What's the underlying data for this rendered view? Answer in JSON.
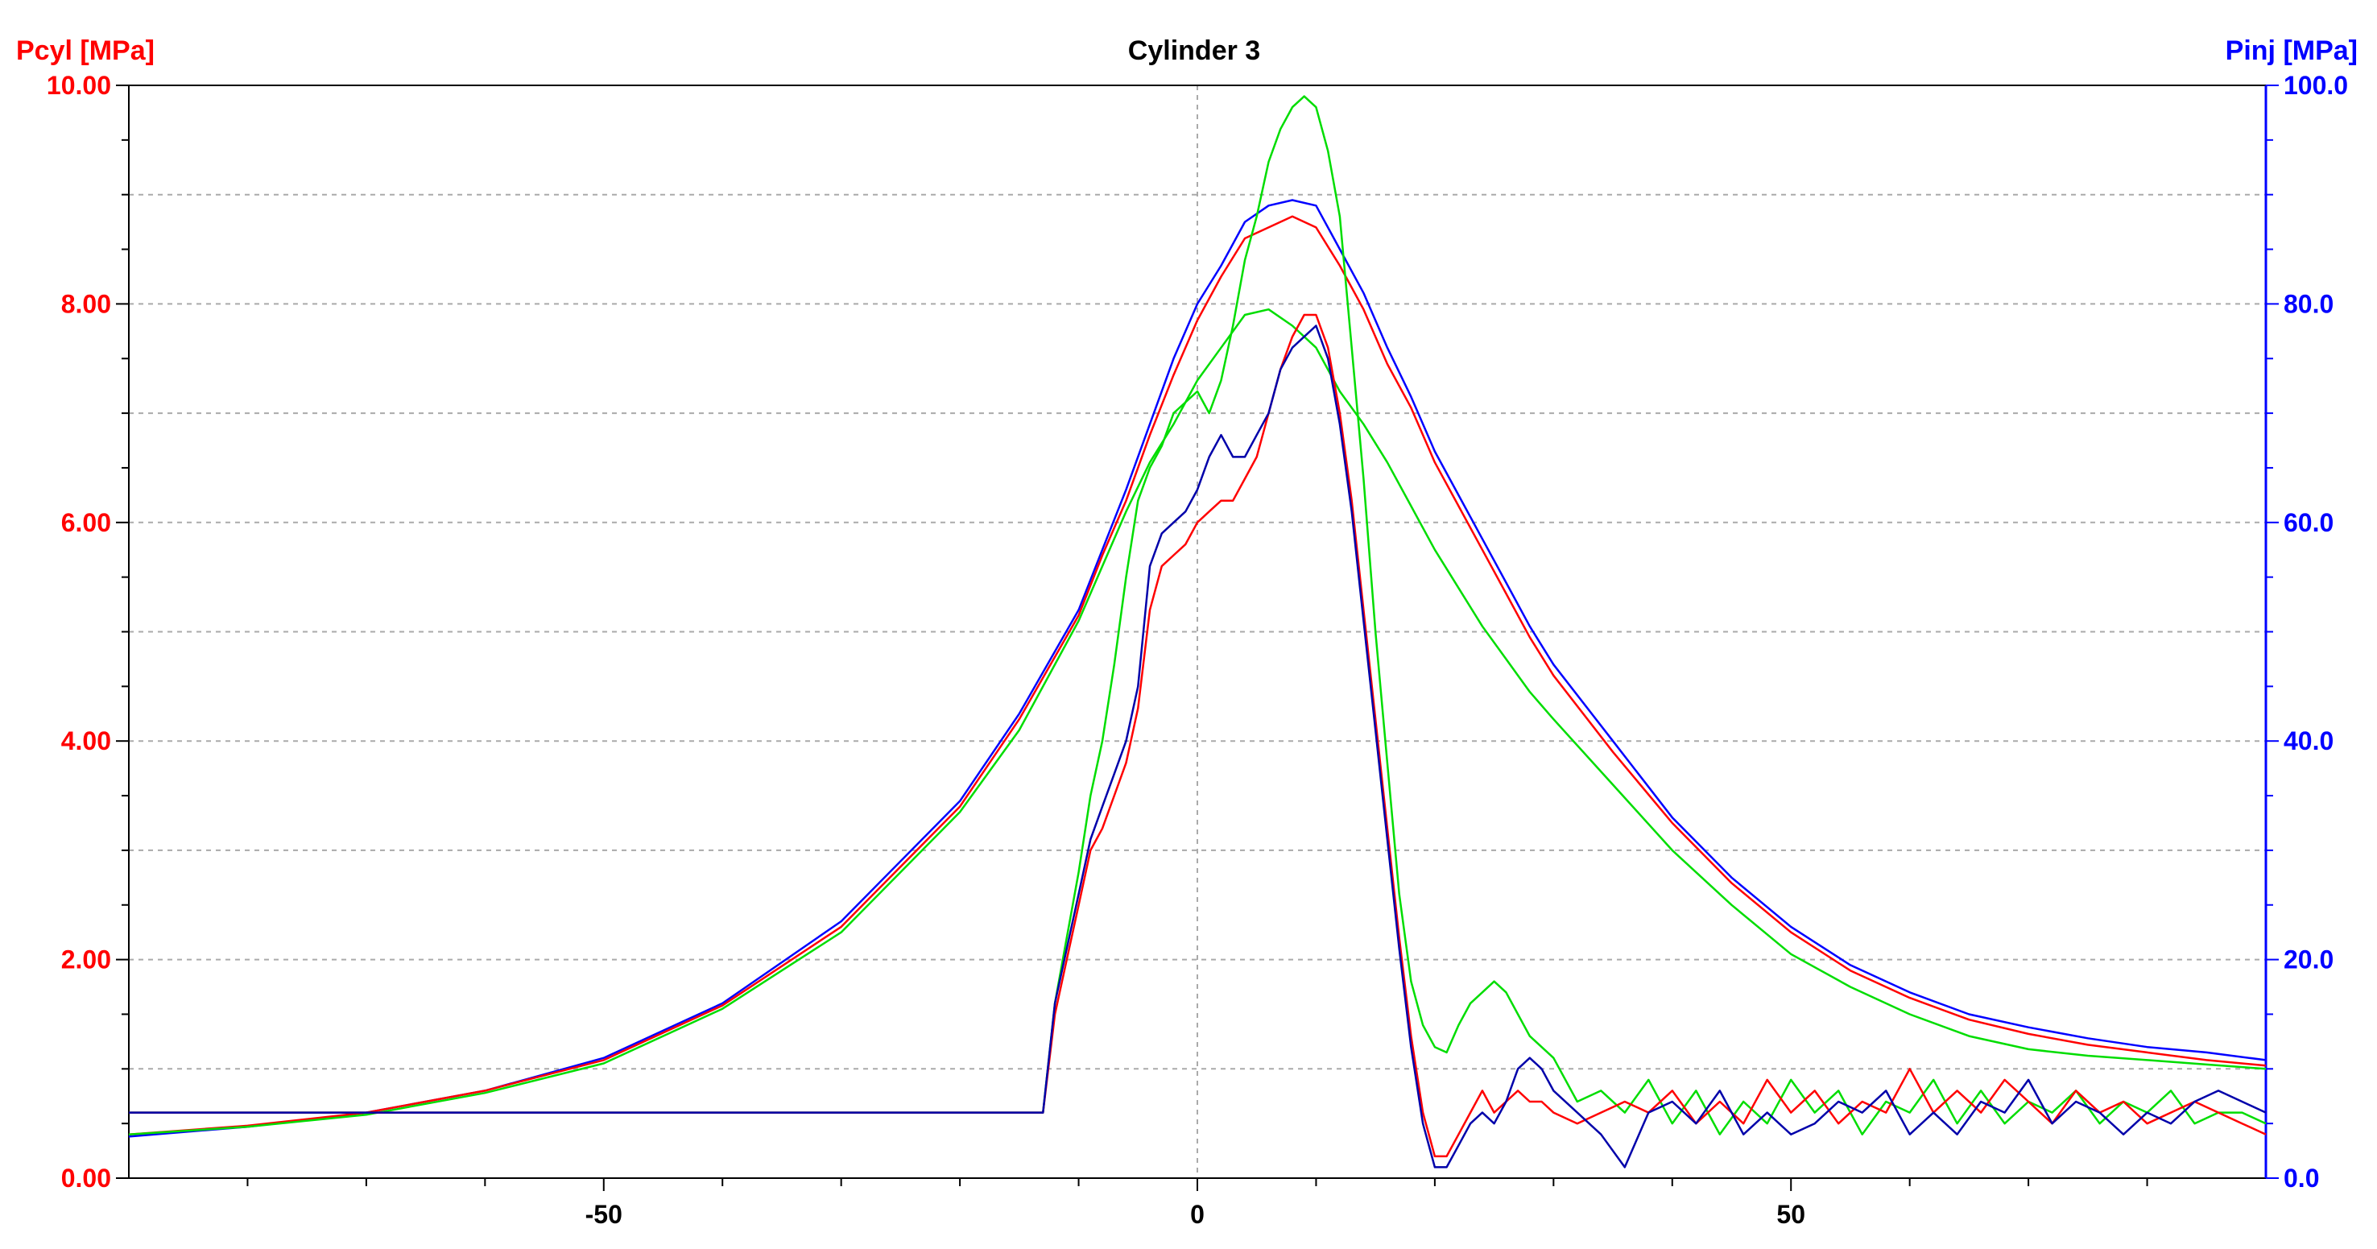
{
  "chart_data": {
    "type": "line",
    "title": "Cylinder 3",
    "left_axis": {
      "label": "Pcyl [MPa]",
      "range": [
        0,
        10
      ],
      "ticks": [
        "0.00",
        "2.00",
        "4.00",
        "6.00",
        "8.00",
        "10.00"
      ],
      "color": "#ff0000"
    },
    "right_axis": {
      "label": "Pinj [MPa]",
      "range": [
        0,
        100
      ],
      "ticks": [
        "0.0",
        "20.0",
        "40.0",
        "60.0",
        "80.0",
        "100.0"
      ],
      "color": "#0000ff"
    },
    "x_axis": {
      "range": [
        -90,
        90
      ],
      "ticks": [
        "-50",
        "0",
        "50"
      ],
      "tick_values": [
        -50,
        0,
        50
      ]
    },
    "grid": true,
    "series_colors": [
      "#0000ff",
      "#ff0000",
      "#00dd00"
    ],
    "series": [
      {
        "axis": "left",
        "color": "#0000ff",
        "x": [
          -90,
          -80,
          -70,
          -60,
          -50,
          -40,
          -30,
          -20,
          -15,
          -10,
          -8,
          -6,
          -4,
          -2,
          0,
          2,
          4,
          6,
          8,
          10,
          12,
          14,
          16,
          18,
          20,
          22,
          24,
          26,
          28,
          30,
          35,
          40,
          45,
          50,
          55,
          60,
          65,
          70,
          75,
          80,
          85,
          90
        ],
        "y": [
          0.38,
          0.47,
          0.6,
          0.8,
          1.1,
          1.6,
          2.35,
          3.45,
          4.25,
          5.2,
          5.75,
          6.3,
          6.9,
          7.5,
          8.0,
          8.35,
          8.75,
          8.9,
          8.95,
          8.9,
          8.5,
          8.1,
          7.6,
          7.15,
          6.65,
          6.25,
          5.85,
          5.45,
          5.05,
          4.7,
          4.0,
          3.3,
          2.75,
          2.3,
          1.95,
          1.7,
          1.5,
          1.38,
          1.28,
          1.2,
          1.15,
          1.08
        ]
      },
      {
        "axis": "left",
        "color": "#ff0000",
        "x": [
          -90,
          -80,
          -70,
          -60,
          -50,
          -40,
          -30,
          -20,
          -15,
          -10,
          -8,
          -6,
          -4,
          -2,
          0,
          2,
          4,
          6,
          8,
          10,
          12,
          14,
          16,
          18,
          20,
          22,
          24,
          26,
          28,
          30,
          35,
          40,
          45,
          50,
          55,
          60,
          65,
          70,
          75,
          80,
          85,
          90
        ],
        "y": [
          0.4,
          0.48,
          0.6,
          0.8,
          1.08,
          1.58,
          2.3,
          3.4,
          4.2,
          5.15,
          5.7,
          6.2,
          6.8,
          7.35,
          7.85,
          8.25,
          8.6,
          8.7,
          8.8,
          8.7,
          8.35,
          7.95,
          7.45,
          7.05,
          6.55,
          6.15,
          5.75,
          5.35,
          4.95,
          4.6,
          3.9,
          3.25,
          2.7,
          2.25,
          1.9,
          1.65,
          1.45,
          1.32,
          1.22,
          1.15,
          1.08,
          1.03
        ]
      },
      {
        "axis": "left",
        "color": "#00dd00",
        "x": [
          -90,
          -80,
          -70,
          -60,
          -50,
          -40,
          -30,
          -20,
          -15,
          -10,
          -8,
          -6,
          -4,
          -2,
          0,
          2,
          4,
          6,
          8,
          10,
          12,
          14,
          16,
          18,
          20,
          22,
          24,
          26,
          28,
          30,
          35,
          40,
          45,
          50,
          55,
          60,
          65,
          70,
          75,
          80,
          85,
          90
        ],
        "y": [
          0.4,
          0.47,
          0.58,
          0.78,
          1.05,
          1.55,
          2.25,
          3.35,
          4.1,
          5.1,
          5.6,
          6.1,
          6.55,
          6.9,
          7.3,
          7.6,
          7.9,
          7.95,
          7.8,
          7.6,
          7.2,
          6.9,
          6.55,
          6.15,
          5.75,
          5.4,
          5.05,
          4.75,
          4.45,
          4.2,
          3.6,
          3.0,
          2.5,
          2.05,
          1.75,
          1.5,
          1.3,
          1.18,
          1.12,
          1.08,
          1.04,
          1.0
        ]
      },
      {
        "axis": "right",
        "color": "#00dd00",
        "x": [
          -90,
          -13,
          -12,
          -11,
          -10,
          -9,
          -8,
          -7,
          -6,
          -5,
          -4,
          -3,
          -2,
          -1,
          0,
          1,
          2,
          3,
          4,
          5,
          6,
          7,
          8,
          9,
          10,
          11,
          12,
          13,
          14,
          15,
          16,
          17,
          18,
          19,
          20,
          21,
          22,
          23,
          24,
          25,
          26,
          27,
          28,
          29,
          30,
          32,
          34,
          36,
          38,
          40,
          42,
          44,
          46,
          48,
          50,
          52,
          54,
          56,
          58,
          60,
          62,
          64,
          66,
          68,
          70,
          72,
          74,
          76,
          78,
          80,
          82,
          84,
          86,
          88,
          90
        ],
        "y": [
          6,
          6,
          16,
          22,
          28,
          35,
          40,
          47,
          55,
          62,
          65,
          67,
          70,
          71,
          72,
          70,
          73,
          78,
          84,
          88,
          93,
          96,
          98,
          99,
          98,
          94,
          88,
          76,
          64,
          50,
          38,
          26,
          18,
          14,
          12,
          11.5,
          14,
          16,
          17,
          18,
          17,
          15,
          13,
          12,
          11,
          7,
          8,
          6,
          9,
          5,
          8,
          4,
          7,
          5,
          9,
          6,
          8,
          4,
          7,
          6,
          9,
          5,
          8,
          5,
          7,
          6,
          8,
          5,
          7,
          6,
          8,
          5,
          6,
          6,
          5
        ]
      },
      {
        "axis": "right",
        "color": "#ff0000",
        "x": [
          -90,
          -13,
          -12,
          -11,
          -10,
          -9,
          -8,
          -7,
          -6,
          -5,
          -4,
          -3,
          -2,
          -1,
          0,
          1,
          2,
          3,
          4,
          5,
          6,
          7,
          8,
          9,
          10,
          11,
          12,
          13,
          14,
          15,
          16,
          17,
          18,
          19,
          20,
          21,
          22,
          23,
          24,
          25,
          26,
          27,
          28,
          29,
          30,
          32,
          34,
          36,
          38,
          40,
          42,
          44,
          46,
          48,
          50,
          52,
          54,
          56,
          58,
          60,
          62,
          64,
          66,
          68,
          70,
          72,
          74,
          76,
          78,
          80,
          82,
          84,
          86,
          88,
          90
        ],
        "y": [
          6,
          6,
          15,
          20,
          25,
          30,
          32,
          35,
          38,
          43,
          52,
          56,
          57,
          58,
          60,
          61,
          62,
          62,
          64,
          66,
          70,
          74,
          77,
          79,
          79,
          76,
          70,
          62,
          52,
          42,
          32,
          22,
          13,
          6,
          2,
          2,
          4,
          6,
          8,
          6,
          7,
          8,
          7,
          7,
          6,
          5,
          6,
          7,
          6,
          8,
          5,
          7,
          5,
          9,
          6,
          8,
          5,
          7,
          6,
          10,
          6,
          8,
          6,
          9,
          7,
          5,
          8,
          6,
          7,
          5,
          6,
          7,
          6,
          5,
          4
        ]
      },
      {
        "axis": "right",
        "color": "#0000aa",
        "x": [
          -90,
          -13,
          -12,
          -11,
          -10,
          -9,
          -8,
          -7,
          -6,
          -5,
          -4,
          -3,
          -2,
          -1,
          0,
          1,
          2,
          3,
          4,
          5,
          6,
          7,
          8,
          9,
          10,
          11,
          12,
          13,
          14,
          15,
          16,
          17,
          18,
          19,
          20,
          21,
          22,
          23,
          24,
          25,
          26,
          27,
          28,
          29,
          30,
          32,
          34,
          36,
          38,
          40,
          42,
          44,
          46,
          48,
          50,
          52,
          54,
          56,
          58,
          60,
          62,
          64,
          66,
          68,
          70,
          72,
          74,
          76,
          78,
          80,
          82,
          84,
          86,
          88,
          90
        ],
        "y": [
          6,
          6,
          16,
          21,
          26,
          31,
          34,
          37,
          40,
          45,
          56,
          59,
          60,
          61,
          63,
          66,
          68,
          66,
          66,
          68,
          70,
          74,
          76,
          77,
          78,
          75,
          69,
          61,
          51,
          41,
          31,
          21,
          12,
          5,
          1,
          1,
          3,
          5,
          6,
          5,
          7,
          10,
          11,
          10,
          8,
          6,
          4,
          1,
          6,
          7,
          5,
          8,
          4,
          6,
          4,
          5,
          7,
          6,
          8,
          4,
          6,
          4,
          7,
          6,
          9,
          5,
          7,
          6,
          4,
          6,
          5,
          7,
          8,
          7,
          6
        ]
      }
    ]
  }
}
